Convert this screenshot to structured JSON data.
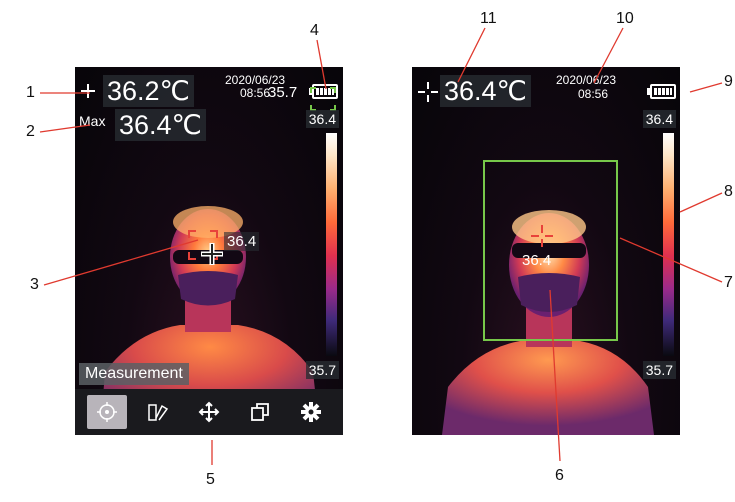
{
  "left": {
    "center_temp": "36.2℃",
    "max_label": "Max",
    "max_temp": "36.4℃",
    "date": "2020/06/23",
    "time": "08:56",
    "overlap_value": "35.7",
    "scale_max": "36.4",
    "scale_min": "35.7",
    "spot_value": "36.4",
    "menu_label": "Measurement",
    "toolbar": [
      "target-icon",
      "palette-icon",
      "move-icon",
      "layers-icon",
      "gear-icon"
    ]
  },
  "right": {
    "center_temp": "36.4℃",
    "date": "2020/06/23",
    "time": "08:56",
    "scale_max": "36.4",
    "scale_min": "35.7",
    "spot_value": "36.4"
  },
  "callouts": [
    "1",
    "2",
    "3",
    "4",
    "5",
    "6",
    "7",
    "8",
    "9",
    "10",
    "11"
  ],
  "colors": {
    "frame_green": "#77c84a",
    "marker_red": "#e8423a",
    "line": "#e03a2f"
  }
}
